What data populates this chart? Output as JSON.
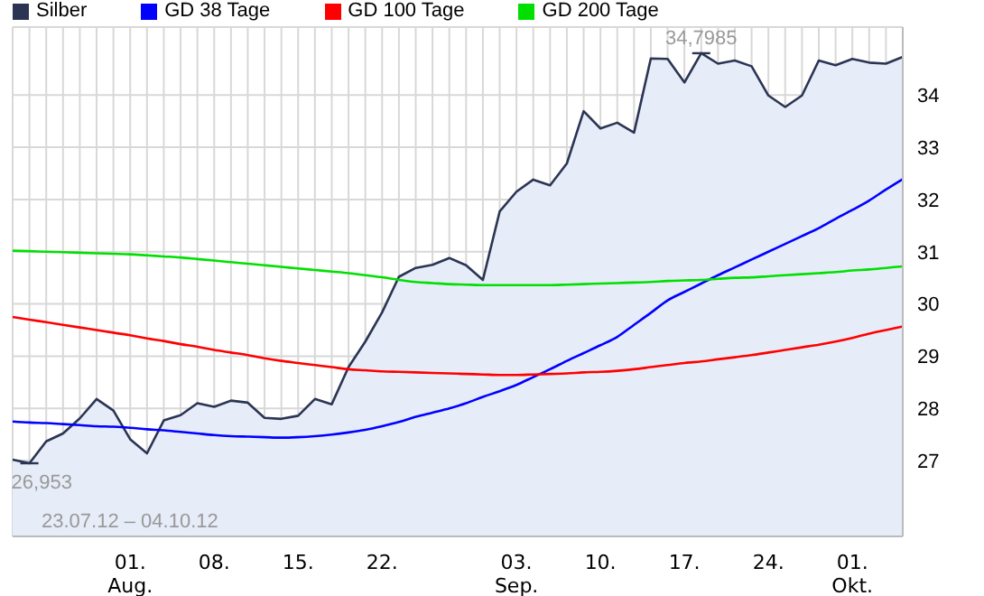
{
  "chart_data": {
    "type": "line",
    "categories": [
      null,
      null,
      null,
      null,
      null,
      null,
      null,
      "01.\nAug.",
      null,
      null,
      null,
      null,
      "08.",
      null,
      null,
      null,
      null,
      "15.",
      null,
      null,
      null,
      null,
      "22.",
      null,
      null,
      null,
      null,
      null,
      null,
      null,
      "03.\nSep.",
      null,
      null,
      null,
      null,
      "10.",
      null,
      null,
      null,
      null,
      "17.",
      null,
      null,
      null,
      null,
      "24.",
      null,
      null,
      null,
      null,
      "01.\nOkt.",
      null,
      null,
      null
    ],
    "series": [
      {
        "name": "Silber",
        "type": "area",
        "color": "#2b3553",
        "values": [
          27.02,
          26.95,
          27.37,
          27.52,
          27.81,
          28.18,
          27.96,
          27.41,
          27.14,
          27.77,
          27.87,
          28.1,
          28.03,
          28.15,
          28.11,
          27.82,
          27.8,
          27.86,
          28.18,
          28.08,
          28.79,
          29.28,
          29.84,
          30.52,
          30.69,
          30.75,
          30.88,
          30.74,
          30.46,
          31.77,
          32.15,
          32.38,
          32.27,
          32.69,
          33.69,
          33.36,
          33.47,
          33.28,
          34.7,
          34.69,
          34.24,
          34.8,
          34.6,
          34.66,
          34.55,
          33.99,
          33.77,
          33.99,
          34.66,
          34.57,
          34.69,
          34.62,
          34.6,
          34.73
        ]
      },
      {
        "name": "GD 38 Tage",
        "color": "#0000ff",
        "values": [
          27.75,
          27.73,
          27.72,
          27.7,
          27.68,
          27.66,
          27.65,
          27.63,
          27.6,
          27.58,
          27.55,
          27.52,
          27.49,
          27.47,
          27.46,
          27.45,
          27.44,
          27.45,
          27.47,
          27.5,
          27.54,
          27.59,
          27.66,
          27.74,
          27.84,
          27.92,
          28.0,
          28.1,
          28.22,
          28.33,
          28.45,
          28.6,
          28.75,
          28.91,
          29.06,
          29.21,
          29.37,
          29.6,
          29.83,
          30.07,
          30.23,
          30.39,
          30.55,
          30.7,
          30.85,
          31.0,
          31.15,
          31.3,
          31.45,
          31.63,
          31.8,
          31.98,
          32.19,
          32.39
        ]
      },
      {
        "name": "GD 100 Tage",
        "color": "#ff0000",
        "values": [
          29.75,
          29.7,
          29.65,
          29.6,
          29.55,
          29.5,
          29.45,
          29.4,
          29.34,
          29.29,
          29.23,
          29.18,
          29.12,
          29.07,
          29.02,
          28.96,
          28.91,
          28.87,
          28.83,
          28.79,
          28.75,
          28.73,
          28.71,
          28.7,
          28.69,
          28.68,
          28.67,
          28.66,
          28.65,
          28.64,
          28.64,
          28.65,
          28.66,
          28.67,
          28.69,
          28.7,
          28.72,
          28.75,
          28.79,
          28.83,
          28.87,
          28.9,
          28.94,
          28.98,
          29.02,
          29.07,
          29.12,
          29.17,
          29.22,
          29.28,
          29.35,
          29.43,
          29.5,
          29.57
        ]
      },
      {
        "name": "GD 200 Tage",
        "color": "#00e000",
        "values": [
          31.02,
          31.01,
          31.0,
          30.99,
          30.98,
          30.97,
          30.96,
          30.95,
          30.93,
          30.91,
          30.89,
          30.86,
          30.83,
          30.8,
          30.77,
          30.74,
          30.71,
          30.68,
          30.65,
          30.62,
          30.59,
          30.55,
          30.51,
          30.46,
          30.42,
          30.4,
          30.38,
          30.37,
          30.36,
          30.36,
          30.36,
          30.36,
          30.36,
          30.37,
          30.38,
          30.39,
          30.4,
          30.41,
          30.42,
          30.44,
          30.45,
          30.46,
          30.48,
          30.5,
          30.51,
          30.53,
          30.55,
          30.57,
          30.59,
          30.61,
          30.64,
          30.66,
          30.69,
          30.72
        ]
      }
    ],
    "ylim": [
      25.55,
      35.3
    ],
    "yticks": [
      27,
      28,
      29,
      30,
      31,
      32,
      33,
      34
    ],
    "grid": true,
    "legend": "top left",
    "marker": "none",
    "annotations": [
      "34,7985",
      "26,953",
      "23.07.12 – 04.10.12"
    ]
  }
}
